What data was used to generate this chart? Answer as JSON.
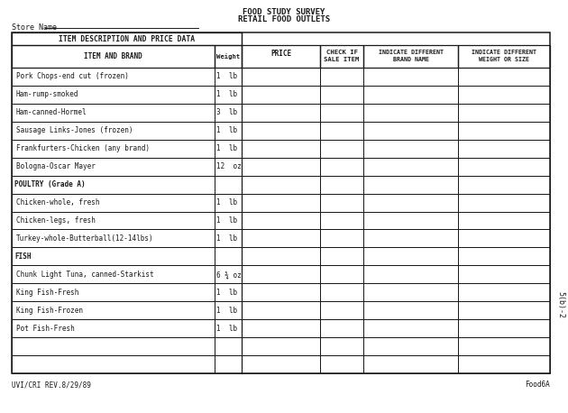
{
  "title_line1": "FOOD STUDY SURVEY",
  "title_line2": "RETAIL FOOD OUTLETS",
  "store_name_label": "Store Name",
  "header1": "ITEM DESCRIPTION AND PRICE DATA",
  "rows": [
    {
      "item": "Pork Chops-end cut (frozen)",
      "weight": "1  lb",
      "category": false
    },
    {
      "item": "Ham-rump-smoked",
      "weight": "1  lb",
      "category": false
    },
    {
      "item": "Ham-canned-Hormel",
      "weight": "3  lb",
      "category": false
    },
    {
      "item": "Sausage Links-Jones (frozen)",
      "weight": "1  lb",
      "category": false
    },
    {
      "item": "Frankfurters-Chicken (any brand)",
      "weight": "1  lb",
      "category": false
    },
    {
      "item": "Bologna-Oscar Mayer",
      "weight": "12  oz",
      "category": false
    },
    {
      "item": "POULTRY (Grade A)",
      "weight": "",
      "category": true
    },
    {
      "item": "Chicken-whole, fresh",
      "weight": "1  lb",
      "category": false
    },
    {
      "item": "Chicken-legs, fresh",
      "weight": "1  lb",
      "category": false
    },
    {
      "item": "Turkey-whole-Butterball(12-14lbs)",
      "weight": "1  lb",
      "category": false
    },
    {
      "item": "FISH",
      "weight": "",
      "category": true
    },
    {
      "item": "Chunk Light Tuna, canned-Starkist",
      "weight": "6 ¾ oz",
      "category": false
    },
    {
      "item": "King Fish-Fresh",
      "weight": "1  lb",
      "category": false
    },
    {
      "item": "King Fish-Frozen",
      "weight": "1  lb",
      "category": false
    },
    {
      "item": "Pot Fish-Fresh",
      "weight": "1  lb",
      "category": false
    },
    {
      "item": "",
      "weight": "",
      "category": false
    },
    {
      "item": "",
      "weight": "",
      "category": false
    }
  ],
  "footer_left": "UVI/CRI REV.8/29/89",
  "footer_right": "Food6A",
  "side_text": "5(b)-2",
  "bg_color": "#ffffff",
  "line_color": "#1a1a1a",
  "text_color": "#1a1a1a"
}
